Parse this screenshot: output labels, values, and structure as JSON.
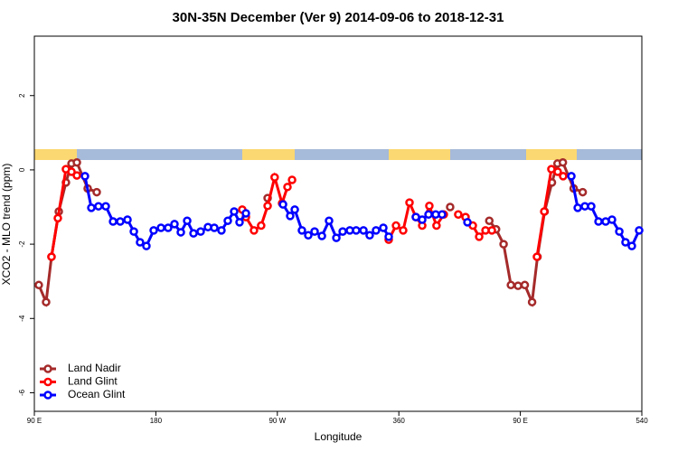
{
  "chart_data": {
    "type": "line",
    "title": "30N-35N December (Ver 9)   2014-09-06 to 2018-12-31",
    "x_label": "Longitude",
    "y_label": "XCO2 - MLO trend (ppm)",
    "xlim": [
      90,
      540
    ],
    "xticks": [
      {
        "value": 90,
        "label": "90 E"
      },
      180,
      {
        "value": 270,
        "label": "90 W"
      },
      360,
      {
        "value": 450,
        "label": "90 E"
      },
      540
    ],
    "ylim": [
      -6.5,
      3.6
    ],
    "yticks": [
      -6,
      -4,
      -2,
      0,
      2
    ],
    "legend": "bottom-left",
    "series": [
      {
        "name": "Land Nadir",
        "color": "#a52a2a",
        "x": [
          93.3,
          98.7,
          102.7,
          108.1,
          113.4,
          117.5,
          121.5,
          129.5,
          136.2,
          null,
          262.8,
          null,
          398,
          null,
          427,
          432,
          437.6,
          443,
          448.3,
          453.3,
          458.7,
          462.7,
          468,
          473.4,
          477.5,
          481.5,
          489.5,
          496.2
        ],
        "values": [
          -3.1,
          -3.56,
          -2.34,
          -1.12,
          -0.34,
          0.17,
          0.2,
          -0.5,
          -0.6,
          null,
          -0.76,
          null,
          -1.0,
          null,
          -1.37,
          -1.6,
          -2.0,
          -3.1,
          -3.12,
          -3.1,
          -3.56,
          -2.34,
          -1.12,
          -0.34,
          0.17,
          0.2,
          -0.5,
          -0.6
        ]
      },
      {
        "name": "Land Glint",
        "color": "#ff0000",
        "x": [
          102.7,
          107.4,
          113.4,
          117.5,
          121.5,
          null,
          244,
          246.7,
          252.7,
          258,
          262.8,
          268,
          273.5,
          277.5,
          280.9,
          null,
          352.5,
          357.9,
          363.2,
          367.9,
          372.6,
          377.3,
          382.6,
          387.9,
          393.3,
          null,
          404,
          409.4,
          414.8,
          419.5,
          424.2,
          428.9,
          null,
          462.3,
          467.7,
          473,
          477.7,
          481.7
        ],
        "values": [
          -2.34,
          -1.3,
          0.02,
          -0.05,
          -0.15,
          null,
          -1.07,
          -1.27,
          -1.63,
          -1.5,
          -0.97,
          -0.2,
          -0.9,
          -0.46,
          -0.27,
          null,
          -1.88,
          -1.5,
          -1.63,
          -0.88,
          -1.27,
          -1.5,
          -0.97,
          -1.5,
          -1.2,
          null,
          -1.2,
          -1.27,
          -1.5,
          -1.8,
          -1.63,
          -1.63,
          null,
          -2.34,
          -1.12,
          0.02,
          -0.05,
          -0.17
        ]
      },
      {
        "name": "Ocean Glint",
        "color": "#0000ff",
        "x": [
          127.5,
          132.2,
          137.5,
          142.9,
          148.3,
          153.6,
          159,
          163.7,
          168.3,
          173,
          178.4,
          183.8,
          189.1,
          193.8,
          198.5,
          203.2,
          207.9,
          213.2,
          218.6,
          223.3,
          228.6,
          233.3,
          238,
          242,
          246.7,
          null,
          274.2,
          279.5,
          282.9,
          288.2,
          292.9,
          297.6,
          303,
          308.3,
          313.7,
          318.4,
          323.7,
          328.4,
          333.8,
          338.4,
          343.1,
          348.5,
          352.5,
          null,
          372.6,
          377.3,
          382,
          387.3,
          392,
          null,
          410.8,
          null,
          487.8,
          492.5,
          497.8,
          502.5,
          507.9,
          513.2,
          517.9,
          523.3,
          527.9,
          532.6,
          538
        ],
        "values": [
          -0.17,
          -1.02,
          -0.98,
          -0.98,
          -1.39,
          -1.39,
          -1.34,
          -1.66,
          -1.95,
          -2.05,
          -1.63,
          -1.56,
          -1.56,
          -1.46,
          -1.68,
          -1.37,
          -1.71,
          -1.66,
          -1.54,
          -1.56,
          -1.63,
          -1.37,
          -1.12,
          -1.41,
          -1.17,
          null,
          -0.93,
          -1.24,
          -1.07,
          -1.63,
          -1.76,
          -1.66,
          -1.78,
          -1.37,
          -1.83,
          -1.66,
          -1.63,
          -1.63,
          -1.63,
          -1.76,
          -1.63,
          -1.56,
          -1.8,
          null,
          -1.27,
          -1.34,
          -1.2,
          -1.2,
          -1.2,
          null,
          -1.41,
          null,
          -0.17,
          -1.02,
          -0.98,
          -0.98,
          -1.39,
          -1.39,
          -1.34,
          -1.66,
          -1.95,
          -2.05,
          -1.63
        ]
      }
    ]
  }
}
